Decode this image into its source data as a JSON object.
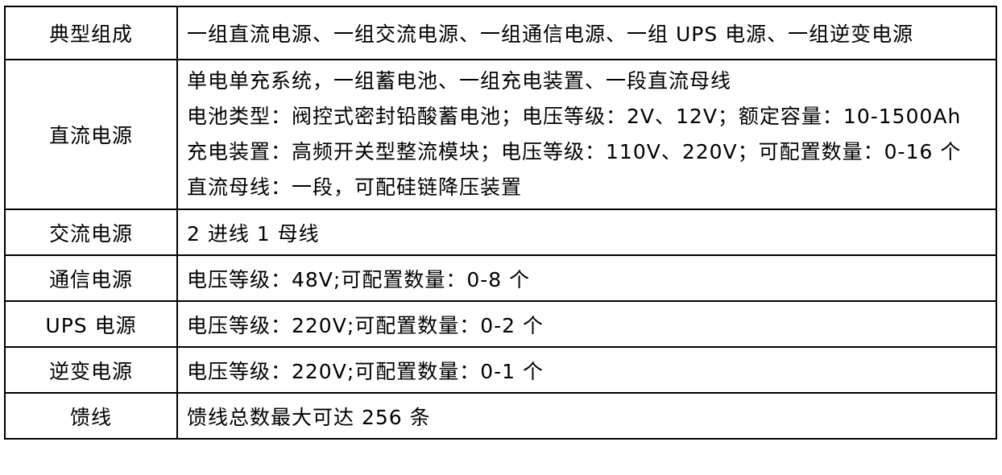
{
  "rows": [
    {
      "label": "典型组成",
      "lines": [
        "一组直流电源、一组交流电源、一组通信电源、一组 UPS 电源、一组逆变电源"
      ]
    },
    {
      "label": "直流电源",
      "lines": [
        "单电单充系统，一组蓄电池、一组充电装置、一段直流母线",
        "电池类型：阀控式密封铅酸蓄电池；电压等级：2V、12V；额定容量：10-1500Ah",
        "充电装置：高频开关型整流模块；电压等级：110V、220V；可配置数量：0-16 个",
        "直流母线：一段，可配硅链降压装置"
      ]
    },
    {
      "label": "交流电源",
      "lines": [
        "2 进线 1 母线"
      ]
    },
    {
      "label": "通信电源",
      "lines": [
        "电压等级：48V;可配置数量：0-8 个"
      ]
    },
    {
      "label": "UPS 电源",
      "lines": [
        "电压等级：220V;可配置数量：0-2 个"
      ]
    },
    {
      "label": "逆变电源",
      "lines": [
        "电压等级：220V;可配置数量：0-1 个"
      ]
    },
    {
      "label": "馈线",
      "lines": [
        "馈线总数最大可达 256 条"
      ]
    }
  ]
}
